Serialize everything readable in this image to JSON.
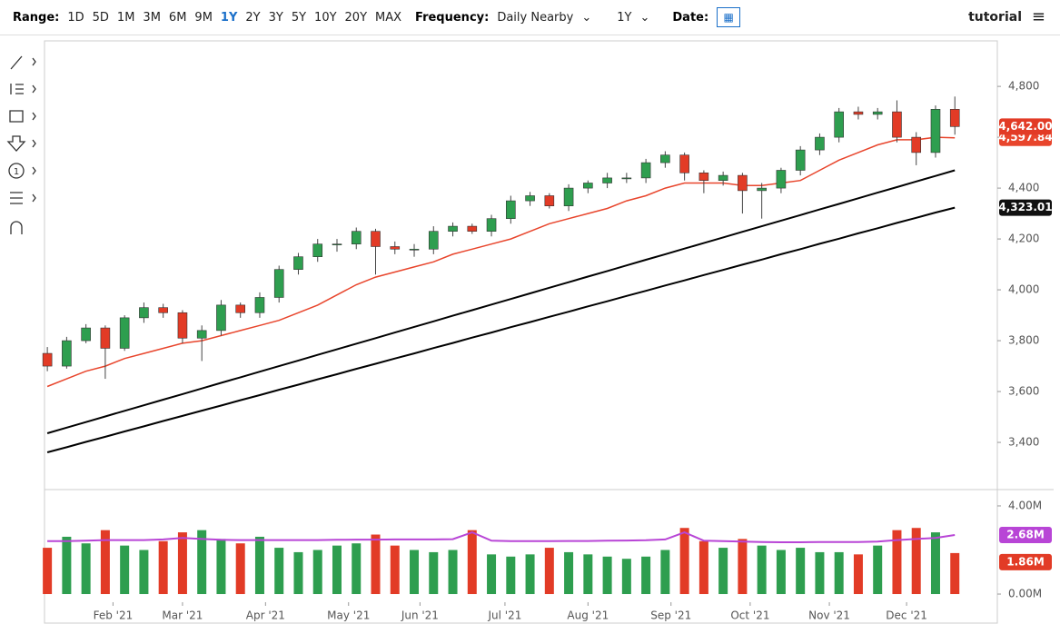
{
  "toolbar": {
    "range_label": "Range:",
    "ranges": [
      "1D",
      "5D",
      "1M",
      "3M",
      "6M",
      "9M",
      "1Y",
      "2Y",
      "3Y",
      "5Y",
      "10Y",
      "20Y",
      "MAX"
    ],
    "active_range": "1Y",
    "frequency_label": "Frequency:",
    "frequency": "Daily Nearby",
    "period": "1Y",
    "date_label": "Date:",
    "tutorial": "tutorial"
  },
  "chart_data": {
    "type": "candlestick",
    "x": [
      0,
      1,
      2,
      3,
      4,
      5,
      6,
      7,
      8,
      9,
      10,
      11,
      12,
      13,
      14,
      15,
      16,
      17,
      18,
      19,
      20,
      21,
      22,
      23,
      24,
      25,
      26,
      27,
      28,
      29,
      30,
      31,
      32,
      33,
      34,
      35,
      36,
      37,
      38,
      39,
      40,
      41,
      42,
      43,
      44,
      45,
      46,
      47
    ],
    "xlim": [
      -0.1,
      49.2
    ],
    "xticks": [
      {
        "value": 3.4,
        "label": "Feb '21"
      },
      {
        "value": 7.0,
        "label": "Mar '21"
      },
      {
        "value": 11.3,
        "label": "Apr '21"
      },
      {
        "value": 15.6,
        "label": "May '21"
      },
      {
        "value": 19.3,
        "label": "Jun '21"
      },
      {
        "value": 23.7,
        "label": "Jul '21"
      },
      {
        "value": 28.0,
        "label": "Aug '21"
      },
      {
        "value": 32.3,
        "label": "Sep '21"
      },
      {
        "value": 36.4,
        "label": "Oct '21"
      },
      {
        "value": 40.5,
        "label": "Nov '21"
      },
      {
        "value": 44.5,
        "label": "Dec '21"
      }
    ],
    "ylim": [
      3218,
      4979
    ],
    "yticks": [
      {
        "value": 3400,
        "label": "3,400"
      },
      {
        "value": 3600,
        "label": "3,600"
      },
      {
        "value": 3800,
        "label": "3,800"
      },
      {
        "value": 4000,
        "label": "4,000"
      },
      {
        "value": 4200,
        "label": "4,200"
      },
      {
        "value": 4400,
        "label": "4,400"
      },
      {
        "value": 4600,
        "label": "4,600"
      },
      {
        "value": 4800,
        "label": "4,800"
      }
    ],
    "up_color": "#2e9e4f",
    "down_color": "#e23b26",
    "open": [
      3750,
      3700,
      3800,
      3850,
      3770,
      3890,
      3930,
      3910,
      3810,
      3840,
      3940,
      3910,
      3970,
      4080,
      4130,
      4180,
      4180,
      4230,
      4170,
      4160,
      4160,
      4230,
      4250,
      4230,
      4280,
      4350,
      4370,
      4330,
      4400,
      4420,
      4440,
      4440,
      4500,
      4530,
      4460,
      4430,
      4450,
      4390,
      4400,
      4470,
      4550,
      4600,
      4700,
      4690,
      4700,
      4600,
      4540,
      4710
    ],
    "high": [
      3775,
      3815,
      3865,
      3860,
      3900,
      3950,
      3945,
      3920,
      3860,
      3960,
      3950,
      3990,
      4095,
      4145,
      4200,
      4200,
      4245,
      4240,
      4190,
      4180,
      4250,
      4265,
      4260,
      4295,
      4370,
      4385,
      4380,
      4415,
      4430,
      4460,
      4460,
      4515,
      4545,
      4540,
      4470,
      4465,
      4460,
      4420,
      4480,
      4565,
      4615,
      4715,
      4720,
      4715,
      4745,
      4620,
      4725,
      4760
    ],
    "low": [
      3680,
      3690,
      3790,
      3650,
      3760,
      3870,
      3890,
      3790,
      3720,
      3820,
      3890,
      3890,
      3950,
      4060,
      4110,
      4150,
      4160,
      4060,
      4140,
      4130,
      4140,
      4210,
      4220,
      4210,
      4260,
      4330,
      4320,
      4310,
      4380,
      4400,
      4420,
      4420,
      4480,
      4430,
      4380,
      4410,
      4300,
      4280,
      4380,
      4450,
      4530,
      4580,
      4670,
      4670,
      4580,
      4490,
      4520,
      4610
    ],
    "close": [
      3700,
      3800,
      3850,
      3770,
      3890,
      3930,
      3910,
      3810,
      3840,
      3940,
      3910,
      3970,
      4080,
      4130,
      4180,
      4180,
      4230,
      4170,
      4160,
      4160,
      4230,
      4250,
      4230,
      4280,
      4350,
      4370,
      4330,
      4400,
      4420,
      4440,
      4440,
      4500,
      4530,
      4460,
      4430,
      4450,
      4390,
      4400,
      4470,
      4550,
      4600,
      4700,
      4690,
      4700,
      4600,
      4540,
      4710,
      4642
    ],
    "close_label": "4,642.00",
    "series": [
      {
        "color": "#e8452c",
        "last_label": "4,597.84",
        "values": [
          3620,
          3650,
          3680,
          3700,
          3730,
          3750,
          3770,
          3790,
          3800,
          3820,
          3840,
          3860,
          3880,
          3910,
          3940,
          3980,
          4020,
          4050,
          4070,
          4090,
          4110,
          4140,
          4160,
          4180,
          4200,
          4230,
          4260,
          4280,
          4300,
          4320,
          4350,
          4370,
          4400,
          4420,
          4420,
          4420,
          4410,
          4410,
          4420,
          4430,
          4470,
          4510,
          4540,
          4570,
          4590,
          4590,
          4600,
          4597.84
        ]
      },
      {
        "color": "#000000",
        "values": [
          3436,
          3458,
          3480,
          3502,
          3524,
          3546,
          3568,
          3590,
          3612,
          3634,
          3656,
          3678,
          3700,
          3722,
          3744,
          3766,
          3788,
          3810,
          3832,
          3854,
          3876,
          3898,
          3920,
          3942,
          3964,
          3986,
          4008,
          4030,
          4052,
          4074,
          4096,
          4118,
          4140,
          4162,
          4184,
          4206,
          4228,
          4250,
          4272,
          4294,
          4316,
          4338,
          4360,
          4382,
          4404,
          4426,
          4448,
          4470
        ]
      },
      {
        "color": "#000000",
        "last_label": "4,323.01",
        "values": [
          3361,
          3381,
          3402,
          3422,
          3443,
          3463,
          3484,
          3504,
          3525,
          3545,
          3566,
          3586,
          3607,
          3627,
          3648,
          3668,
          3689,
          3709,
          3730,
          3750,
          3771,
          3791,
          3812,
          3832,
          3853,
          3873,
          3894,
          3914,
          3935,
          3955,
          3976,
          3996,
          4017,
          4037,
          4058,
          4078,
          4099,
          4119,
          4140,
          4160,
          4181,
          4201,
          4222,
          4242,
          4263,
          4283,
          4304,
          4323.01
        ]
      }
    ],
    "volume": {
      "ylim": [
        -0.04,
        4.7
      ],
      "yticks": [
        {
          "value": 0,
          "label": "0.00M"
        },
        {
          "value": 4,
          "label": "4.00M"
        }
      ],
      "values": [
        2.1,
        2.6,
        2.3,
        2.9,
        2.2,
        2.0,
        2.4,
        2.8,
        2.9,
        2.5,
        2.3,
        2.6,
        2.1,
        1.9,
        2.0,
        2.2,
        2.3,
        2.7,
        2.2,
        2.0,
        1.9,
        2.0,
        2.9,
        1.8,
        1.7,
        1.8,
        2.1,
        1.9,
        1.8,
        1.7,
        1.6,
        1.7,
        2.0,
        3.0,
        2.4,
        2.1,
        2.5,
        2.2,
        2.0,
        2.1,
        1.9,
        1.9,
        1.8,
        2.2,
        2.9,
        3.0,
        2.8,
        1.86
      ],
      "last_label": "1.86M",
      "ma": {
        "color": "#b845d6",
        "last_label": "2.68M",
        "values": [
          2.4,
          2.4,
          2.42,
          2.45,
          2.45,
          2.45,
          2.48,
          2.55,
          2.5,
          2.46,
          2.45,
          2.45,
          2.45,
          2.45,
          2.45,
          2.46,
          2.47,
          2.47,
          2.48,
          2.48,
          2.48,
          2.49,
          2.8,
          2.42,
          2.4,
          2.4,
          2.4,
          2.41,
          2.41,
          2.42,
          2.43,
          2.44,
          2.48,
          2.8,
          2.42,
          2.4,
          2.38,
          2.36,
          2.35,
          2.35,
          2.36,
          2.36,
          2.36,
          2.38,
          2.45,
          2.5,
          2.55,
          2.68
        ]
      }
    }
  }
}
